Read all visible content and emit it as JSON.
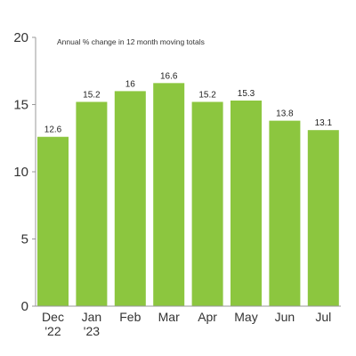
{
  "chart_data": {
    "type": "bar",
    "title": "Annual % change in 12 month moving totals",
    "categories": [
      [
        "Dec",
        "'22"
      ],
      [
        "Jan",
        "'23"
      ],
      [
        "Feb"
      ],
      [
        "Mar"
      ],
      [
        "Apr"
      ],
      [
        "May"
      ],
      [
        "Jun"
      ],
      [
        "Jul"
      ]
    ],
    "values": [
      12.6,
      15.2,
      16,
      16.6,
      15.2,
      15.3,
      13.8,
      13.1
    ],
    "value_labels": [
      "12.6",
      "15.2",
      "16",
      "16.6",
      "15.2",
      "15.3",
      "13.8",
      "13.1"
    ],
    "ylim": [
      0,
      20
    ],
    "yticks": [
      0,
      5,
      10,
      15,
      20
    ],
    "grid": false,
    "colors": {
      "bar": "#8cc63f",
      "axis": "#999999"
    }
  }
}
